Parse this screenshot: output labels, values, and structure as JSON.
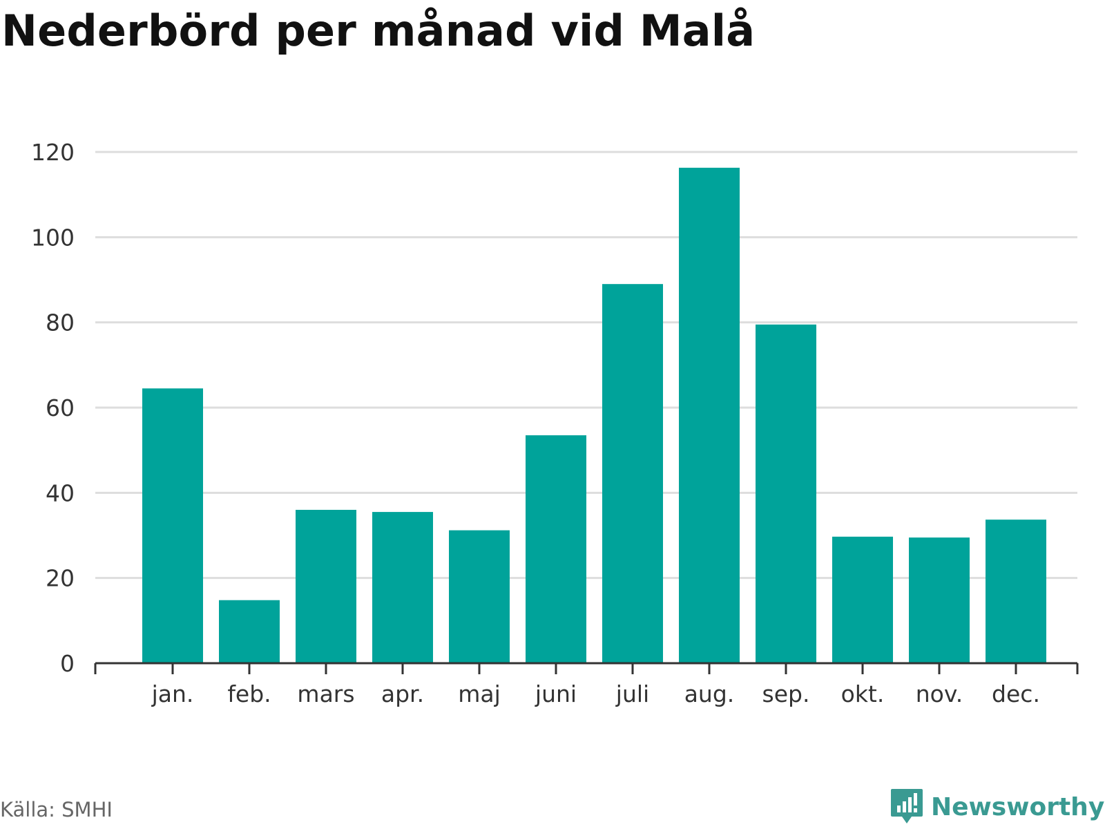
{
  "title": "Nederbörd per månad vid Malå",
  "source": "Källa: SMHI",
  "brand": {
    "name": "Newsworthy",
    "icon": "newsworthy-logo-icon",
    "color": "#3a9a92"
  },
  "colors": {
    "bar": "#00a39a",
    "grid": "#dddddd",
    "axis": "#333333"
  },
  "chart_data": {
    "type": "bar",
    "title": "Nederbörd per månad vid Malå",
    "xlabel": "",
    "ylabel": "",
    "categories": [
      "jan.",
      "feb.",
      "mars",
      "apr.",
      "maj",
      "juni",
      "juli",
      "aug.",
      "sep.",
      "okt.",
      "nov.",
      "dec."
    ],
    "values": [
      64.5,
      14.8,
      36.0,
      35.5,
      31.2,
      53.5,
      89.0,
      116.3,
      79.5,
      29.7,
      29.5,
      33.7
    ],
    "ylim": [
      0,
      120
    ],
    "yticks": [
      0,
      20,
      40,
      60,
      80,
      100,
      120
    ],
    "grid": true,
    "legend": "none"
  }
}
